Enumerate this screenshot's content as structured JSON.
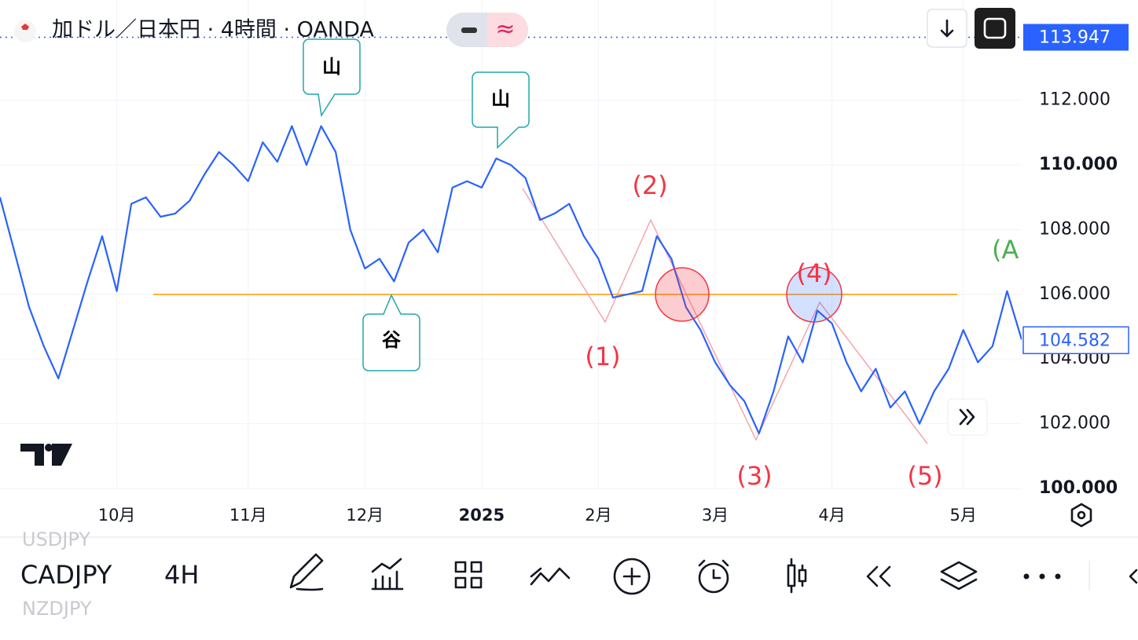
{
  "header": {
    "title": "加ドル／日本円 · 4時間 · OANDA"
  },
  "chart_data": {
    "type": "line",
    "color": "#2962ff",
    "categories": [
      null,
      null,
      null,
      null,
      null,
      null,
      null,
      null,
      "10月",
      null,
      null,
      null,
      null,
      null,
      null,
      null,
      null,
      "11月",
      null,
      null,
      null,
      null,
      null,
      null,
      null,
      "12月",
      null,
      null,
      null,
      null,
      null,
      null,
      null,
      "2025",
      null,
      null,
      null,
      null,
      null,
      null,
      null,
      "2月",
      null,
      null,
      null,
      null,
      null,
      null,
      null,
      "3月",
      null,
      null,
      null,
      null,
      null,
      null,
      null,
      "4月",
      null,
      null,
      null,
      null,
      null,
      null,
      null,
      null,
      "5月",
      null,
      null,
      null,
      null
    ],
    "values": [
      109.0,
      107.3,
      105.6,
      104.4,
      103.4,
      104.9,
      106.4,
      107.8,
      106.1,
      108.8,
      109.0,
      108.4,
      108.5,
      108.9,
      109.7,
      110.4,
      110.0,
      109.5,
      110.7,
      110.1,
      111.2,
      110.0,
      111.2,
      110.4,
      108.0,
      106.8,
      107.1,
      106.4,
      107.6,
      108.0,
      107.3,
      109.3,
      109.5,
      109.3,
      110.2,
      110.0,
      109.6,
      108.3,
      108.5,
      108.8,
      107.8,
      107.1,
      105.9,
      106.0,
      106.1,
      107.8,
      107.1,
      105.6,
      104.9,
      103.9,
      103.2,
      102.7,
      101.7,
      103.0,
      104.7,
      103.9,
      105.5,
      105.1,
      103.9,
      103.0,
      103.7,
      102.5,
      103.0,
      102.0,
      103.0,
      103.7,
      104.9,
      103.9,
      104.4,
      106.1,
      104.6
    ],
    "ylim": [
      100,
      115.1
    ],
    "yticks": [
      {
        "value": 100,
        "label": "100.000"
      },
      {
        "value": 102,
        "label": "102.000"
      },
      {
        "value": 104,
        "label": "104.000"
      },
      {
        "value": 106,
        "label": "106.000"
      },
      {
        "value": 108,
        "label": "108.000"
      },
      {
        "value": 110,
        "label": "110.000"
      },
      {
        "value": 112,
        "label": "112.000"
      }
    ],
    "grid": true,
    "horizontal_line": 106,
    "high_price": {
      "value": 113.947,
      "label": "113.947"
    },
    "last_price": {
      "value": 104.582,
      "label": "104.582"
    },
    "annotations": [
      "山",
      "谷",
      "山",
      "(1)",
      "(2)",
      "(3)",
      "(4)",
      "(5)",
      "(A"
    ]
  },
  "toolbar": {
    "symbol": "CADJPY",
    "interval": "4H",
    "prev_symbol": "USDJPY",
    "next_symbol": "NZDJPY"
  }
}
